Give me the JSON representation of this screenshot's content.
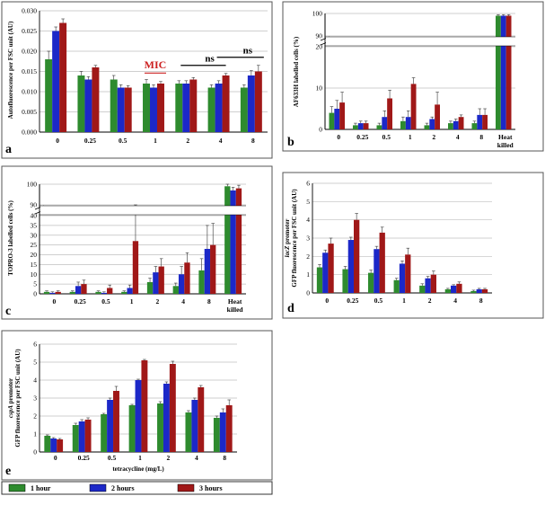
{
  "colors": {
    "1h": "#2e8b2e",
    "2h": "#1c28c8",
    "3h": "#a01818"
  },
  "legend": {
    "items": [
      {
        "label": "1 hour",
        "color": "#2e8b2e"
      },
      {
        "label": "2 hours",
        "color": "#1c28c8"
      },
      {
        "label": "3 hours",
        "color": "#a01818"
      }
    ]
  },
  "chart_data": [
    {
      "panel": "a",
      "type": "bar",
      "ylabel": "Autofluorescence per FSC unit (AU)",
      "ylim": [
        0,
        0.03
      ],
      "yticks": [
        "0.000",
        "0.005",
        "0.010",
        "0.015",
        "0.020",
        "0.025",
        "0.030"
      ],
      "categories": [
        "0",
        "0.25",
        "0.5",
        "1",
        "2",
        "4",
        "8"
      ],
      "series": [
        {
          "values": [
            0.018,
            0.014,
            0.013,
            0.012,
            0.012,
            0.011,
            0.011
          ],
          "errors": [
            0.002,
            0.001,
            0.001,
            0.001,
            0.0007,
            0.0007,
            0.0007
          ]
        },
        {
          "values": [
            0.025,
            0.013,
            0.011,
            0.011,
            0.012,
            0.012,
            0.014
          ],
          "errors": [
            0.001,
            0.0007,
            0.0007,
            0.0007,
            0.0007,
            0.0007,
            0.0012
          ]
        },
        {
          "values": [
            0.027,
            0.016,
            0.011,
            0.012,
            0.013,
            0.014,
            0.015
          ],
          "errors": [
            0.001,
            0.0005,
            0.0005,
            0.0005,
            0.0005,
            0.0005,
            0.0015
          ]
        }
      ],
      "annotations": [
        "MIC",
        "ns",
        "ns"
      ]
    },
    {
      "panel": "b",
      "type": "bar",
      "ylabel": "AF633H labelled cells (%)",
      "broken_axis": {
        "lower": [
          0,
          20
        ],
        "upper": [
          90,
          100
        ]
      },
      "yticks": [
        "0",
        "10",
        "20",
        "90",
        "100"
      ],
      "categories": [
        "0",
        "0.25",
        "0.5",
        "1",
        "2",
        "4",
        "8",
        "Heat killed"
      ],
      "series": [
        {
          "values": [
            4,
            1,
            1,
            2,
            1,
            1.5,
            1.5,
            99
          ],
          "errors": [
            1.5,
            0.5,
            0.5,
            1,
            0.5,
            0.5,
            0.5,
            0.5
          ]
        },
        {
          "values": [
            5,
            1.5,
            3,
            3,
            2.5,
            2,
            3.5,
            99
          ],
          "errors": [
            2,
            0.5,
            1.5,
            1.5,
            0.5,
            0.5,
            1.5,
            0.5
          ]
        },
        {
          "values": [
            6.5,
            1.5,
            7.5,
            11,
            6,
            3,
            3.5,
            99
          ],
          "errors": [
            2.5,
            0.5,
            2,
            1.5,
            3,
            0.5,
            1.5,
            0.5
          ]
        }
      ]
    },
    {
      "panel": "c",
      "type": "bar",
      "ylabel": "TOPRO-3 labelled cells (%)",
      "broken_axis": {
        "lower": [
          0,
          40
        ],
        "upper": [
          90,
          100
        ]
      },
      "yticks": [
        "0",
        "5",
        "10",
        "15",
        "20",
        "25",
        "30",
        "35",
        "40",
        "90",
        "100"
      ],
      "categories": [
        "0",
        "0.25",
        "0.5",
        "1",
        "2",
        "4",
        "8",
        "Heat killed"
      ],
      "series": [
        {
          "values": [
            1,
            1,
            1,
            1,
            6,
            4,
            12,
            99
          ],
          "errors": [
            0.5,
            0.5,
            0.5,
            0.5,
            2,
            1.5,
            6,
            1
          ]
        },
        {
          "values": [
            0.5,
            4,
            0.5,
            3,
            11,
            10,
            23,
            97
          ],
          "errors": [
            0.5,
            2,
            0.5,
            1.5,
            3,
            4,
            12,
            1.5
          ]
        },
        {
          "values": [
            1,
            5,
            3,
            27,
            14,
            16,
            25,
            98
          ],
          "errors": [
            0.5,
            2,
            1.5,
            18,
            4,
            5,
            11,
            1.5
          ]
        }
      ]
    },
    {
      "panel": "d",
      "type": "bar",
      "ylabel_italic": "lacZ",
      "ylabel_rest": " promoter",
      "ylabel2": "GFP fluorescence per FSC unit (AU)",
      "ylim": [
        0,
        6
      ],
      "yticks": [
        "0",
        "1",
        "2",
        "3",
        "4",
        "5",
        "6"
      ],
      "categories": [
        "0",
        "0.25",
        "0.5",
        "1",
        "2",
        "4",
        "8"
      ],
      "series": [
        {
          "values": [
            1.4,
            1.3,
            1.1,
            0.7,
            0.4,
            0.2,
            0.1
          ],
          "errors": [
            0.15,
            0.15,
            0.15,
            0.1,
            0.1,
            0.05,
            0.05
          ]
        },
        {
          "values": [
            2.2,
            2.9,
            2.4,
            1.6,
            0.8,
            0.4,
            0.2
          ],
          "errors": [
            0.15,
            0.15,
            0.15,
            0.15,
            0.1,
            0.05,
            0.05
          ]
        },
        {
          "values": [
            2.7,
            4.0,
            3.3,
            2.1,
            1.0,
            0.5,
            0.2
          ],
          "errors": [
            0.3,
            0.35,
            0.3,
            0.35,
            0.2,
            0.1,
            0.05
          ]
        }
      ]
    },
    {
      "panel": "e",
      "type": "bar",
      "ylabel_italic": "cspA",
      "ylabel_rest": " promoter",
      "ylabel2": "GFP fluorescence per FSC unit (AU)",
      "xlabel": "tetracycline (mg/L)",
      "ylim": [
        0,
        6
      ],
      "yticks": [
        "0",
        "1",
        "2",
        "3",
        "4",
        "5",
        "6"
      ],
      "categories": [
        "0",
        "0.25",
        "0.5",
        "1",
        "2",
        "4",
        "8"
      ],
      "series": [
        {
          "values": [
            0.9,
            1.5,
            2.1,
            2.6,
            2.7,
            2.2,
            1.9
          ],
          "errors": [
            0.05,
            0.1,
            0.05,
            0.05,
            0.1,
            0.1,
            0.1
          ]
        },
        {
          "values": [
            0.75,
            1.7,
            2.9,
            4.0,
            3.8,
            2.9,
            2.2
          ],
          "errors": [
            0.05,
            0.1,
            0.1,
            0.05,
            0.1,
            0.1,
            0.2
          ]
        },
        {
          "values": [
            0.7,
            1.8,
            3.4,
            5.1,
            4.9,
            3.6,
            2.6
          ],
          "errors": [
            0.05,
            0.1,
            0.25,
            0.05,
            0.15,
            0.1,
            0.3
          ]
        }
      ]
    }
  ]
}
